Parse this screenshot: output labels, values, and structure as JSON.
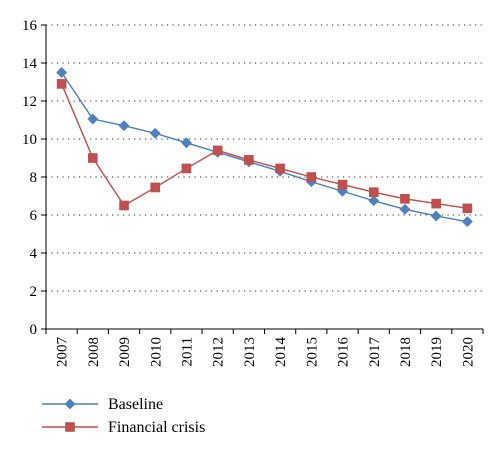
{
  "chart_data": {
    "type": "line",
    "title": "",
    "xlabel": "",
    "ylabel": "",
    "categories": [
      "2007",
      "2008",
      "2009",
      "2010",
      "2011",
      "2012",
      "2013",
      "2014",
      "2015",
      "2016",
      "2017",
      "2018",
      "2019",
      "2020"
    ],
    "ylim": [
      0,
      16
    ],
    "yticks": [
      0,
      2,
      4,
      6,
      8,
      10,
      12,
      14,
      16
    ],
    "grid": "horizontal-dotted",
    "legend_position": "bottom-left",
    "series": [
      {
        "name": "Baseline",
        "marker": "diamond",
        "color": "#4a7ebb",
        "marker_color": "#4f81bd",
        "values": [
          13.5,
          11.05,
          10.7,
          10.3,
          9.8,
          9.3,
          8.8,
          8.3,
          7.75,
          7.25,
          6.75,
          6.3,
          5.95,
          5.65
        ]
      },
      {
        "name": "Financial crisis",
        "marker": "square",
        "color": "#be4b48",
        "marker_color": "#c0504d",
        "values": [
          12.9,
          9.0,
          6.5,
          7.45,
          8.45,
          9.4,
          8.9,
          8.45,
          8.0,
          7.6,
          7.2,
          6.85,
          6.6,
          6.35
        ]
      }
    ]
  }
}
